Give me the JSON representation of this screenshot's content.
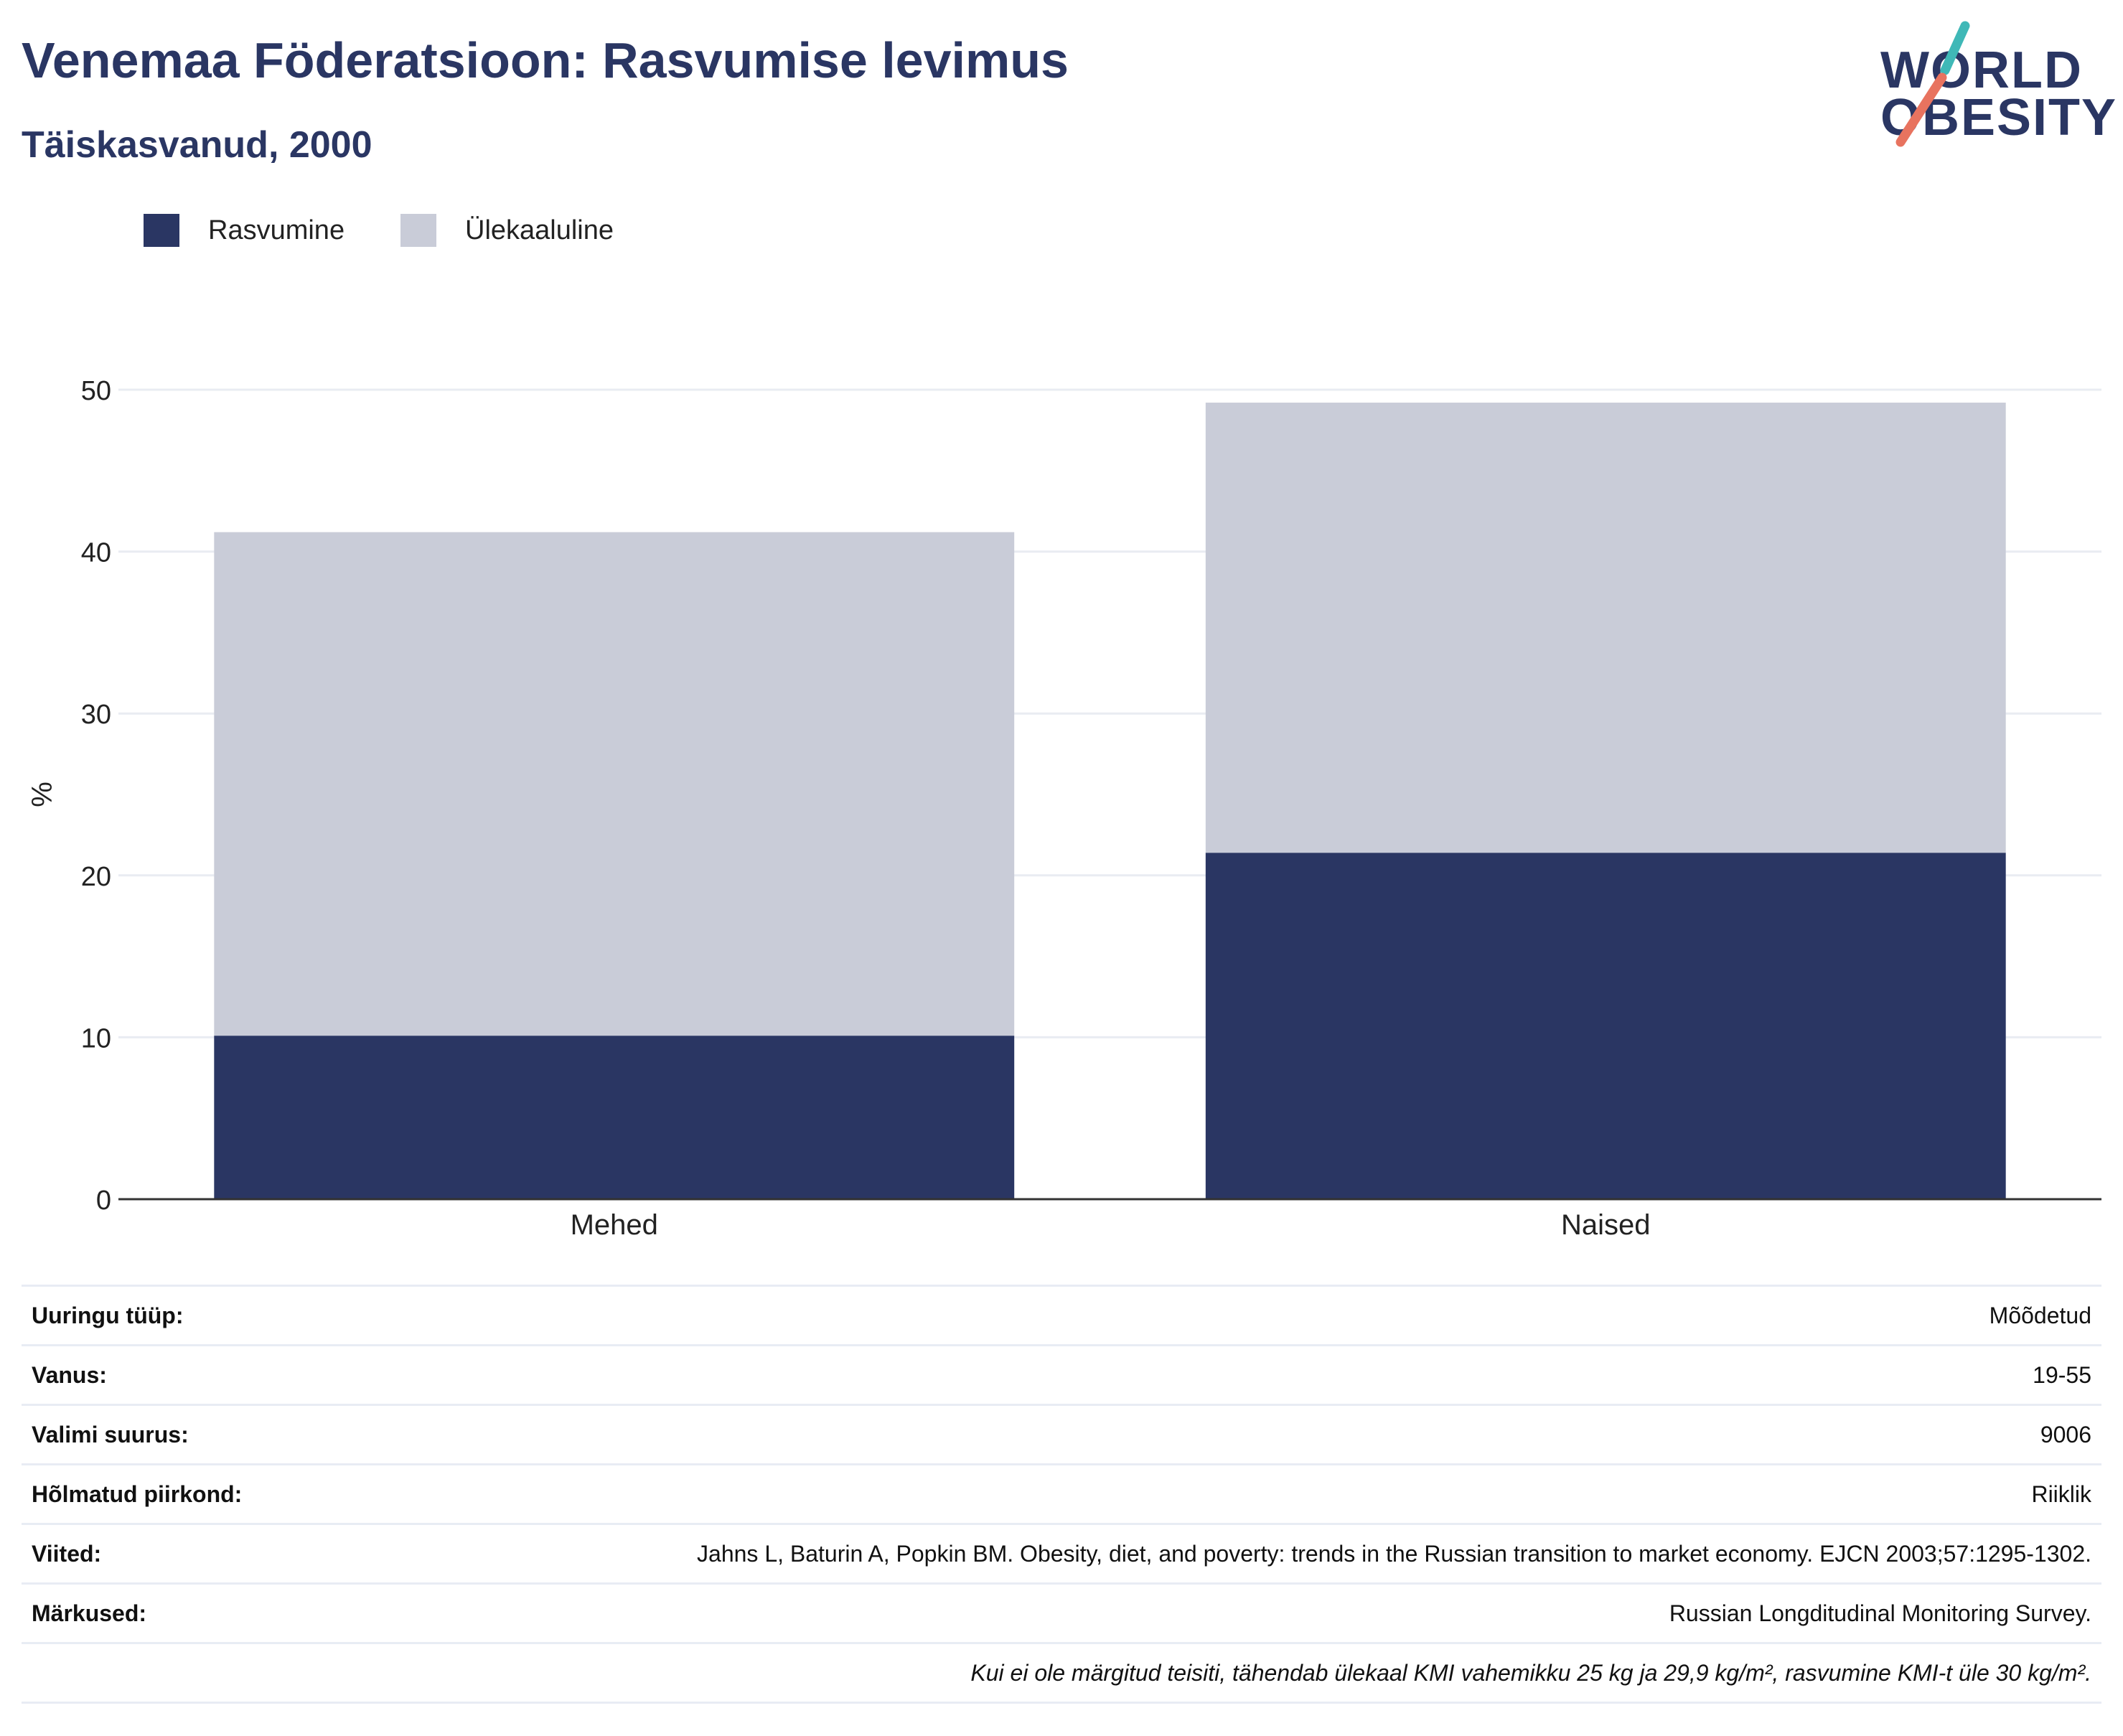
{
  "title": "Venemaa Föderatsioon: Rasvumise levimus",
  "subtitle": "Täiskasvanud, 2000",
  "logo": {
    "line1": "WORLD",
    "line2": "OBESITY",
    "colors": {
      "text": "#2a3663",
      "teal": "#3fb8b7",
      "coral": "#e8735f"
    }
  },
  "colors": {
    "obesity": "#2a3663",
    "overweight": "#c9ccd8",
    "grid": "#e9ecf2",
    "axis": "#333333"
  },
  "chart_data": {
    "type": "bar",
    "stacked": true,
    "categories": [
      "Mehed",
      "Naised"
    ],
    "series": [
      {
        "name": "Rasvumine",
        "values": [
          10.1,
          21.4
        ]
      },
      {
        "name": "Ülekaaluline",
        "values": [
          31.1,
          27.8
        ]
      }
    ],
    "ylabel": "%",
    "ylim": [
      0,
      50
    ],
    "yticks": [
      0,
      10,
      20,
      30,
      40,
      50
    ],
    "grid": true,
    "legend": "top-left"
  },
  "info": [
    {
      "key": "Uuringu tüüp:",
      "value": "Mõõdetud"
    },
    {
      "key": "Vanus:",
      "value": "19-55"
    },
    {
      "key": "Valimi suurus:",
      "value": "9006"
    },
    {
      "key": "Hõlmatud piirkond:",
      "value": "Riiklik"
    },
    {
      "key": "Viited:",
      "value": "Jahns L, Baturin A, Popkin BM. Obesity, diet, and poverty: trends in the Russian transition to market economy. EJCN 2003;57:1295-1302."
    },
    {
      "key": "Märkused:",
      "value": "Russian Longditudinal Monitoring Survey."
    }
  ],
  "footnote": "Kui ei ole märgitud teisiti, tähendab ülekaal KMI vahemikku 25 kg ja 29,9 kg/m², rasvumine KMI-t üle 30 kg/m²."
}
